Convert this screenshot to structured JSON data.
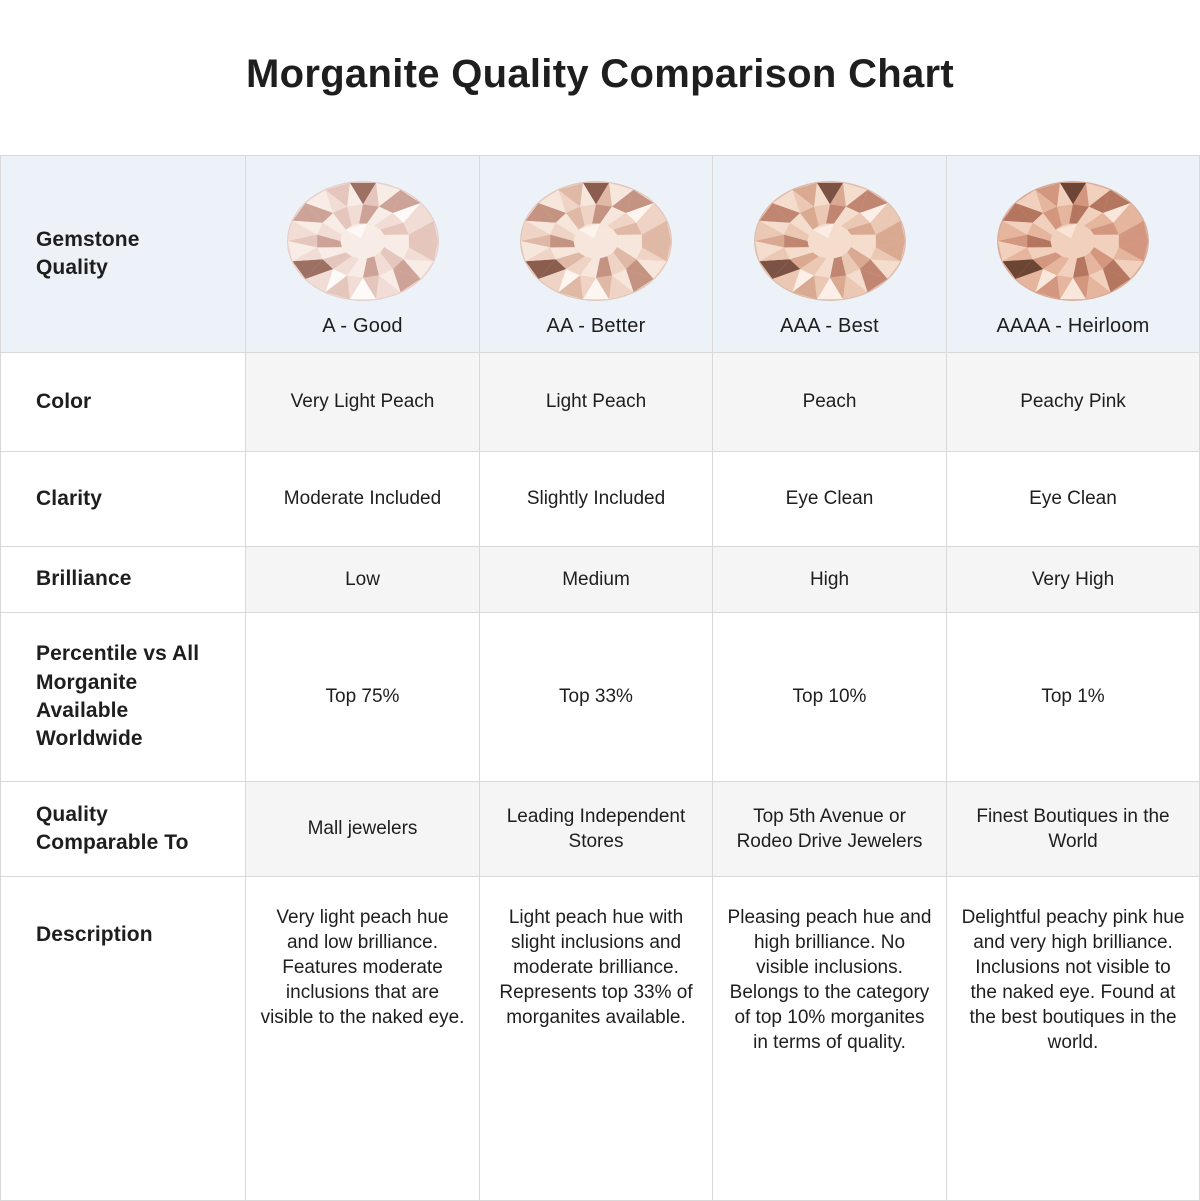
{
  "chart_data": {
    "type": "table",
    "title": "Morganite Quality Comparison Chart",
    "columns": [
      "Gemstone Quality",
      "A - Good",
      "AA - Better",
      "AAA - Best",
      "AAAA - Heirloom"
    ],
    "rows": [
      [
        "Color",
        "Very Light Peach",
        "Light Peach",
        "Peach",
        "Peachy Pink"
      ],
      [
        "Clarity",
        "Moderate Included",
        "Slightly Included",
        "Eye Clean",
        "Eye Clean"
      ],
      [
        "Brilliance",
        "Low",
        "Medium",
        "High",
        "Very High"
      ],
      [
        "Percentile vs All Morganite Available Worldwide",
        "Top 75%",
        "Top 33%",
        "Top 10%",
        "Top 1%"
      ],
      [
        "Quality Comparable To",
        "Mall jewelers",
        "Leading Independent Stores",
        "Top 5th Avenue or Rodeo Drive Jewelers",
        "Finest Boutiques in the World"
      ],
      [
        "Description",
        "Very light peach hue and low brilliance. Features moderate inclusions that are visible to the naked eye.",
        "Light peach hue with slight inclusions and moderate brilliance. Represents top 33% of morganites available.",
        "Pleasing peach hue and high brilliance. No visible inclusions. Belongs to the category of top 10% morganites in terms of quality.",
        "Delightful peachy pink hue and very high brilliance. Inclusions not visible to the naked eye. Found at the best boutiques in the world."
      ]
    ],
    "layout": {
      "header_row_background": "#edf1f8",
      "alternate_cell_background": "#f5f5f5",
      "border_color": "#d9d9d9",
      "text_color": "#1e1e1e"
    }
  },
  "ui": {
    "row_labels": [
      "Gemstone\nQuality",
      "Color",
      "Clarity",
      "Brilliance",
      "Percentile vs All\nMorganite\nAvailable\nWorldwide",
      "Quality\nComparable To",
      "Description"
    ],
    "gems": [
      {
        "name": "gem-a-good",
        "palette": [
          "#fefaf8",
          "#f8ece7",
          "#f1ddd6",
          "#e5c6bc",
          "#cda397",
          "#9c7164"
        ]
      },
      {
        "name": "gem-aa-better",
        "palette": [
          "#fdf5f0",
          "#f7e6dc",
          "#efd4c6",
          "#dfb8a6",
          "#c49381",
          "#8a5d4e"
        ]
      },
      {
        "name": "gem-aaa-best",
        "palette": [
          "#fcefe7",
          "#f4ddcd",
          "#eac8b3",
          "#d9aa91",
          "#c08672",
          "#7c5244"
        ]
      },
      {
        "name": "gem-aaaa-heirloom",
        "palette": [
          "#fae7db",
          "#f1d1be",
          "#e5b59d",
          "#d3977f",
          "#b57660",
          "#6d4535"
        ]
      }
    ]
  }
}
